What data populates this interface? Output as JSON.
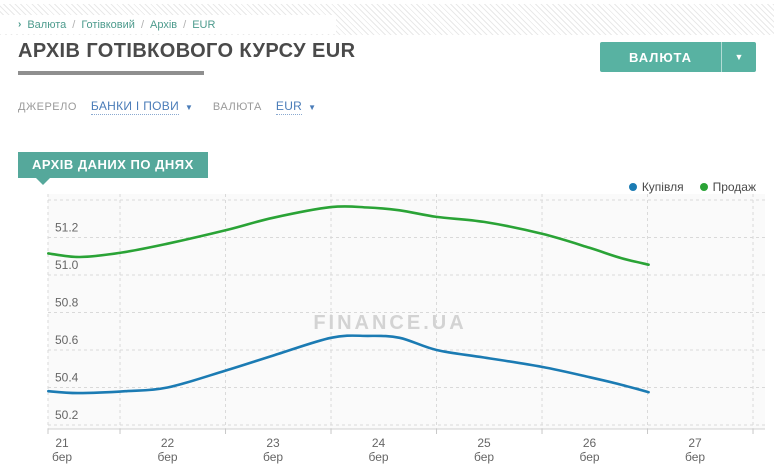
{
  "ui": {
    "arrow_down": "▼"
  },
  "header": {
    "breadcrumb": {
      "arrow": "›",
      "items": [
        "Валюта",
        "Готівковий",
        "Архів",
        "EUR"
      ],
      "separator": "/"
    },
    "title": "АРХІВ ГОТІВКОВОГО КУРСУ EUR",
    "currency_button": {
      "label": "ВАЛЮТА",
      "arrow": "▼"
    }
  },
  "filters": {
    "source_label": "ДЖЕРЕЛО",
    "source_value": "БАНКИ І ПОВИ",
    "currency_label": "ВАЛЮТА",
    "currency_value": "EUR"
  },
  "section_badge": "АРХІВ ДАНИХ ПО ДНЯХ",
  "colors": {
    "accent_teal": "#58B2A2",
    "badge_teal": "#55A89B",
    "breadcrumb_teal": "#4D9B8D",
    "link_blue": "#4A7CB8",
    "buy_blue": "#1B7BB3",
    "sell_green": "#2AA336",
    "grid_gray": "#D9D9D9",
    "axis_text": "#666666"
  },
  "chart_data": {
    "type": "line",
    "title": "",
    "xlabel": "",
    "ylabel": "",
    "xlim": [
      20.85,
      27.65
    ],
    "ylim": [
      50.15,
      51.45
    ],
    "grid": "dashed",
    "legend_position": "top-right",
    "watermark": "FINANCE.UA",
    "x_ticks": [
      {
        "day": 21,
        "label": [
          "21",
          "бер"
        ]
      },
      {
        "day": 22,
        "label": [
          "22",
          "бер"
        ]
      },
      {
        "day": 23,
        "label": [
          "23",
          "бер"
        ]
      },
      {
        "day": 24,
        "label": [
          "24",
          "бер"
        ]
      },
      {
        "day": 25,
        "label": [
          "25",
          "бер"
        ]
      },
      {
        "day": 26,
        "label": [
          "26",
          "бер"
        ]
      },
      {
        "day": 27,
        "label": [
          "27",
          "бер"
        ]
      }
    ],
    "y_ticks": [
      {
        "value": 51.4,
        "label": ""
      },
      {
        "value": 51.2,
        "label": "51.2"
      },
      {
        "value": 51.0,
        "label": "51.0"
      },
      {
        "value": 50.8,
        "label": "50.8"
      },
      {
        "value": 50.6,
        "label": "50.6"
      },
      {
        "value": 50.4,
        "label": "50.4"
      },
      {
        "value": 50.2,
        "label": "50.2"
      }
    ],
    "series": [
      {
        "name": "Купівля",
        "color": "#1B7BB3",
        "points": [
          [
            20.87,
            50.38
          ],
          [
            21.15,
            50.37
          ],
          [
            21.6,
            50.38
          ],
          [
            22.0,
            50.4
          ],
          [
            22.55,
            50.49
          ],
          [
            23.0,
            50.57
          ],
          [
            23.55,
            50.665
          ],
          [
            23.9,
            50.675
          ],
          [
            24.2,
            50.665
          ],
          [
            24.55,
            50.6
          ],
          [
            25.0,
            50.56
          ],
          [
            25.55,
            50.51
          ],
          [
            26.0,
            50.455
          ],
          [
            26.3,
            50.415
          ],
          [
            26.56,
            50.375
          ]
        ]
      },
      {
        "name": "Продаж",
        "color": "#2AA336",
        "points": [
          [
            20.87,
            51.115
          ],
          [
            21.17,
            51.096
          ],
          [
            21.57,
            51.12
          ],
          [
            22.0,
            51.167
          ],
          [
            22.56,
            51.24
          ],
          [
            23.0,
            51.305
          ],
          [
            23.55,
            51.362
          ],
          [
            23.9,
            51.36
          ],
          [
            24.2,
            51.345
          ],
          [
            24.55,
            51.31
          ],
          [
            25.0,
            51.283
          ],
          [
            25.55,
            51.22
          ],
          [
            26.0,
            51.145
          ],
          [
            26.3,
            51.09
          ],
          [
            26.56,
            51.055
          ]
        ]
      }
    ]
  }
}
